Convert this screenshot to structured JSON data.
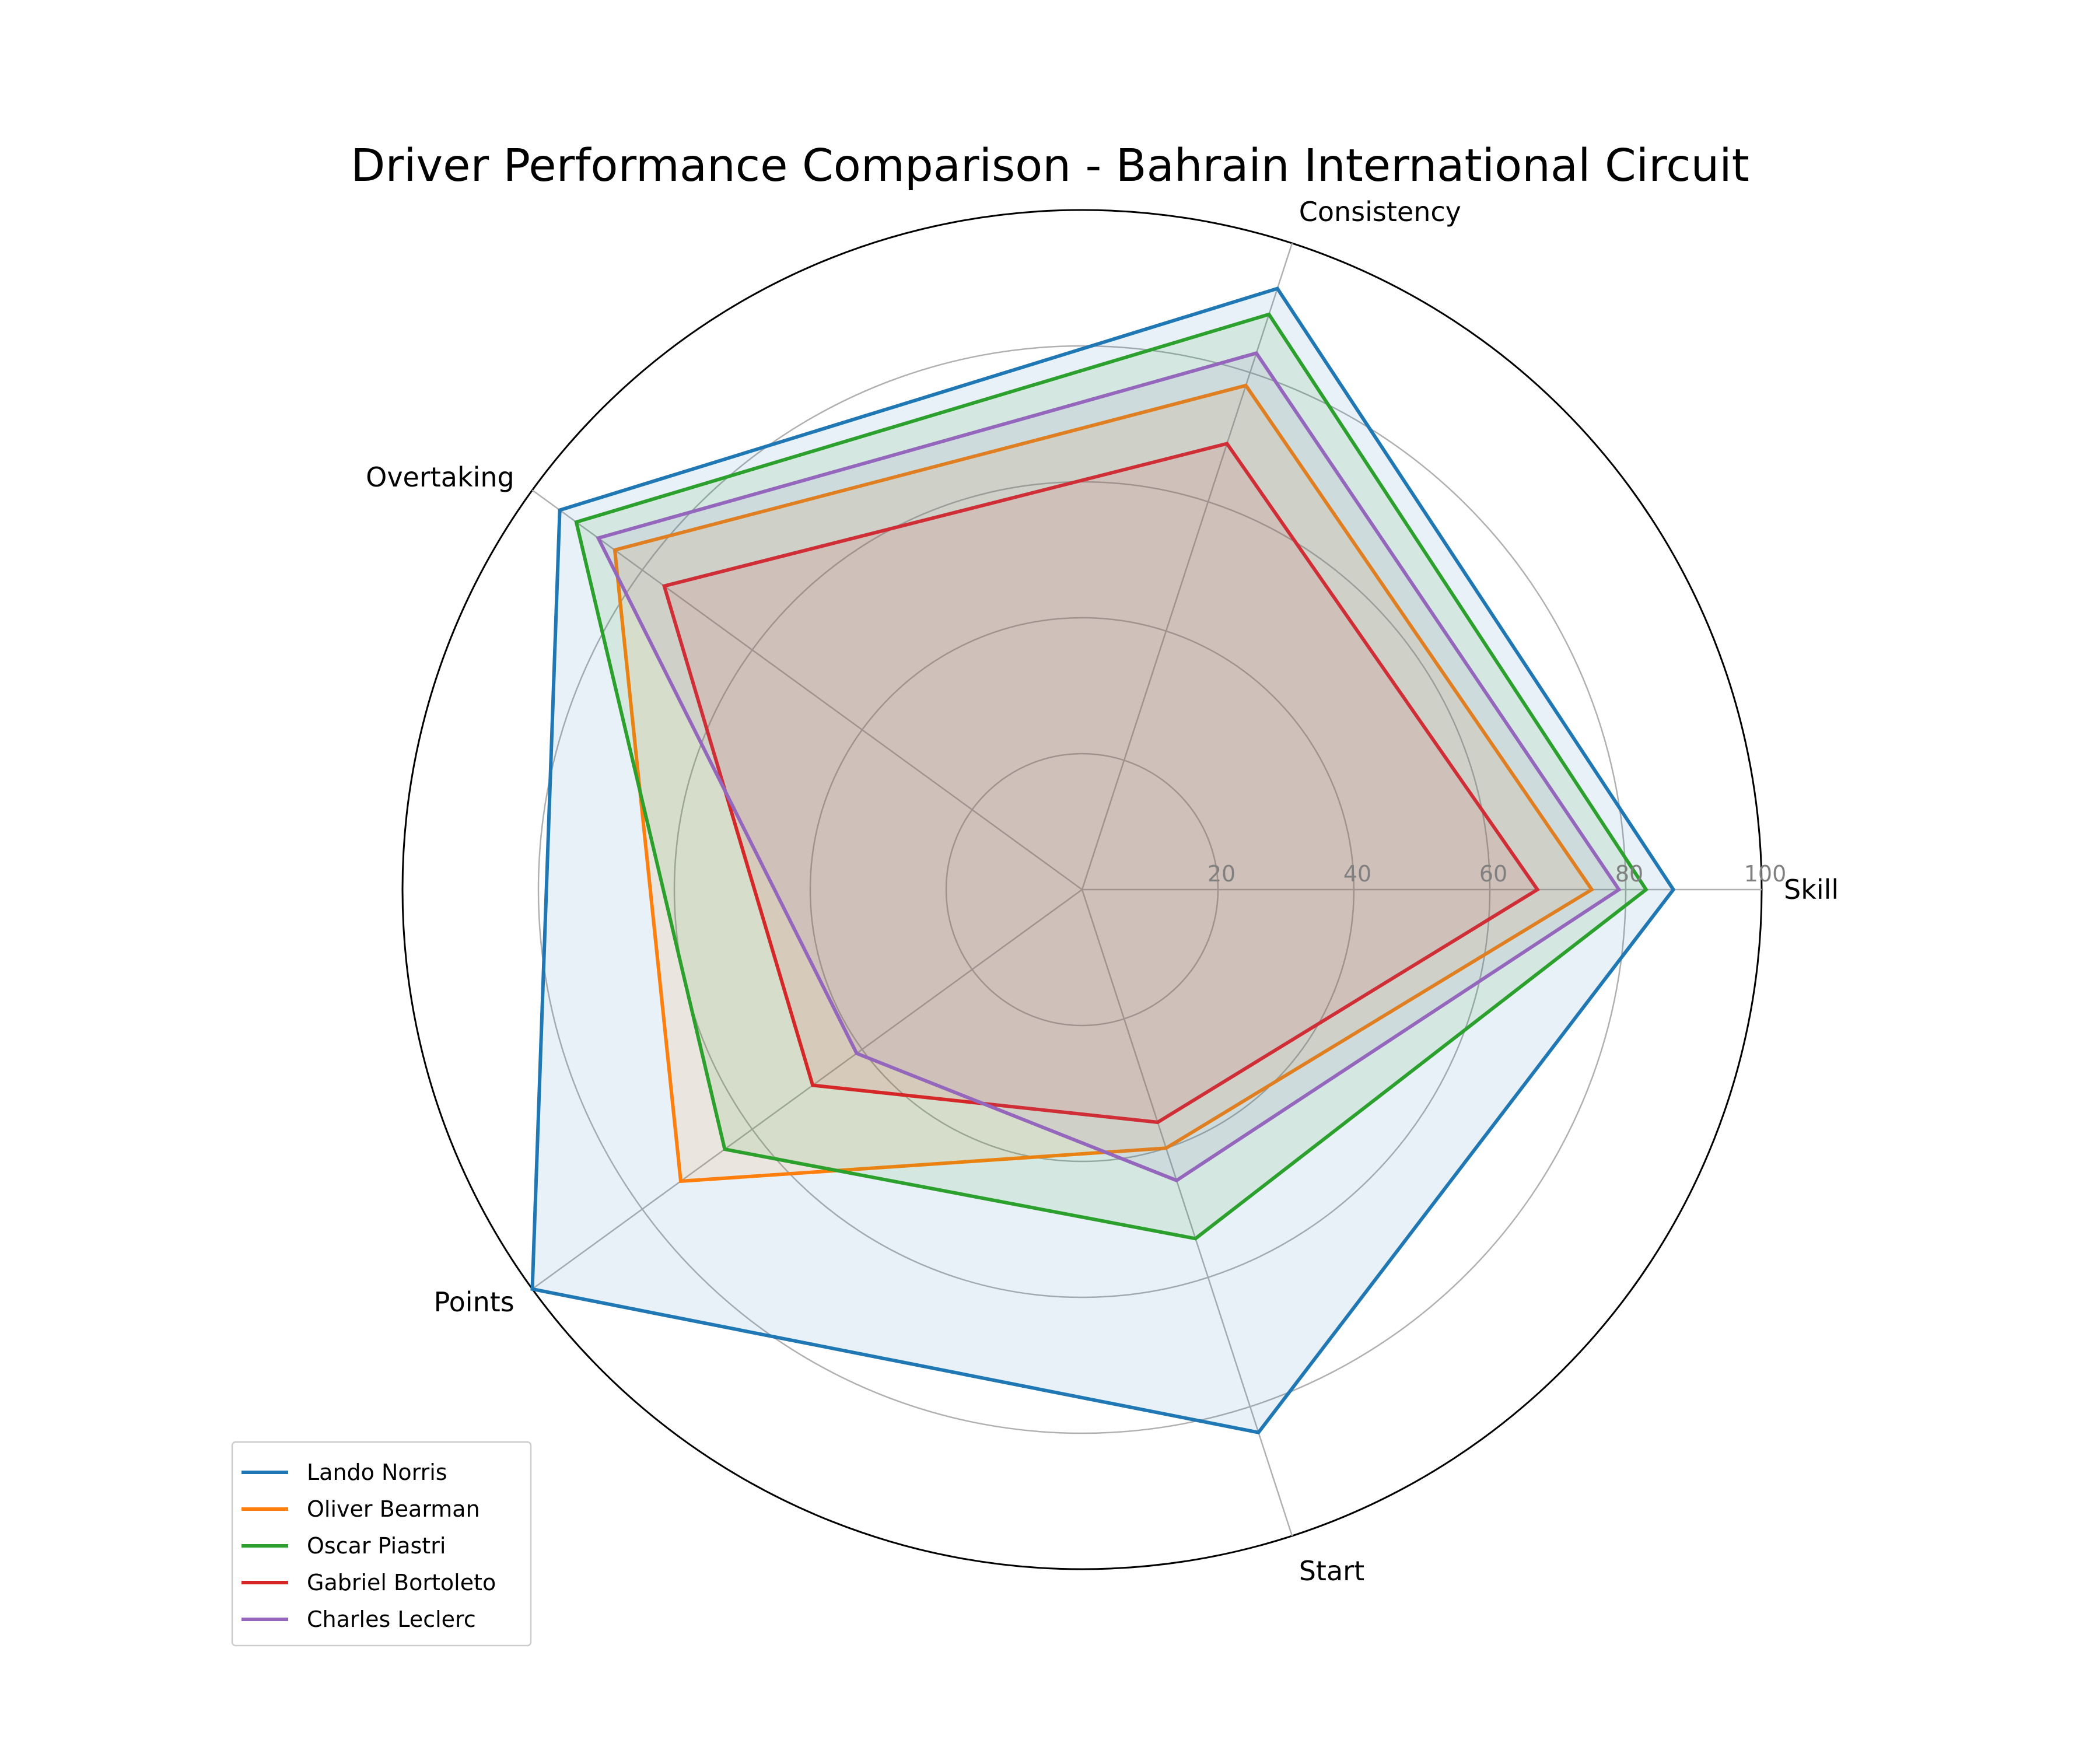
{
  "chart_data": {
    "type": "radar",
    "title": "Driver Performance Comparison - Bahrain International Circuit",
    "axes": [
      "Skill",
      "Consistency",
      "Overtaking",
      "Points",
      "Start"
    ],
    "rlim": [
      0,
      100
    ],
    "rticks": [
      20,
      40,
      60,
      80,
      100
    ],
    "rtick_labels": [
      "20",
      "40",
      "60",
      "80",
      "100"
    ],
    "grid": true,
    "legend_position": "lower-left",
    "series": [
      {
        "name": "Lando Norris",
        "color": "#1f77b4",
        "values": [
          87,
          93,
          95,
          100,
          84
        ]
      },
      {
        "name": "Oliver Bearman",
        "color": "#ff7f0e",
        "values": [
          75,
          78,
          85,
          73,
          40
        ]
      },
      {
        "name": "Oscar Piastri",
        "color": "#2ca02c",
        "values": [
          83,
          89,
          92,
          65,
          54
        ]
      },
      {
        "name": "Gabriel Bortoleto",
        "color": "#d62728",
        "values": [
          67,
          69,
          76,
          49,
          36
        ]
      },
      {
        "name": "Charles Leclerc",
        "color": "#9467bd",
        "values": [
          79,
          83,
          88,
          41,
          45
        ]
      }
    ]
  }
}
